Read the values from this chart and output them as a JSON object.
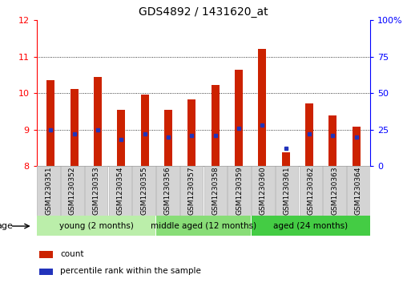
{
  "title": "GDS4892 / 1431620_at",
  "samples": [
    "GSM1230351",
    "GSM1230352",
    "GSM1230353",
    "GSM1230354",
    "GSM1230355",
    "GSM1230356",
    "GSM1230357",
    "GSM1230358",
    "GSM1230359",
    "GSM1230360",
    "GSM1230361",
    "GSM1230362",
    "GSM1230363",
    "GSM1230364"
  ],
  "count_values": [
    10.35,
    10.12,
    10.45,
    9.55,
    9.97,
    9.55,
    9.82,
    10.22,
    10.65,
    11.22,
    8.38,
    9.72,
    9.38,
    9.07
  ],
  "percentile_values": [
    25.0,
    22.0,
    25.0,
    18.0,
    22.0,
    20.0,
    21.0,
    21.0,
    26.0,
    28.0,
    12.0,
    22.0,
    21.0,
    20.0
  ],
  "ylim_left": [
    8,
    12
  ],
  "ylim_right": [
    0,
    100
  ],
  "yticks_left": [
    8,
    9,
    10,
    11,
    12
  ],
  "yticks_right": [
    0,
    25,
    50,
    75,
    100
  ],
  "ytick_labels_right": [
    "0",
    "25",
    "50",
    "75",
    "100%"
  ],
  "bar_color": "#cc2200",
  "marker_color": "#2233bb",
  "bar_bottom": 8.0,
  "grid_lines": [
    9,
    10,
    11
  ],
  "groups": [
    {
      "label": "young (2 months)",
      "start": 0,
      "end": 5,
      "color": "#bbeeaa"
    },
    {
      "label": "middle aged (12 months)",
      "start": 5,
      "end": 9,
      "color": "#88dd77"
    },
    {
      "label": "aged (24 months)",
      "start": 9,
      "end": 14,
      "color": "#44cc44"
    }
  ],
  "age_label": "age",
  "legend_items": [
    {
      "label": "count",
      "color": "#cc2200"
    },
    {
      "label": "percentile rank within the sample",
      "color": "#2233bb"
    }
  ],
  "background_color": "#ffffff",
  "plot_bg": "#ffffff",
  "title_fontsize": 10,
  "tick_fontsize": 6.5,
  "group_label_fontsize": 7.5
}
